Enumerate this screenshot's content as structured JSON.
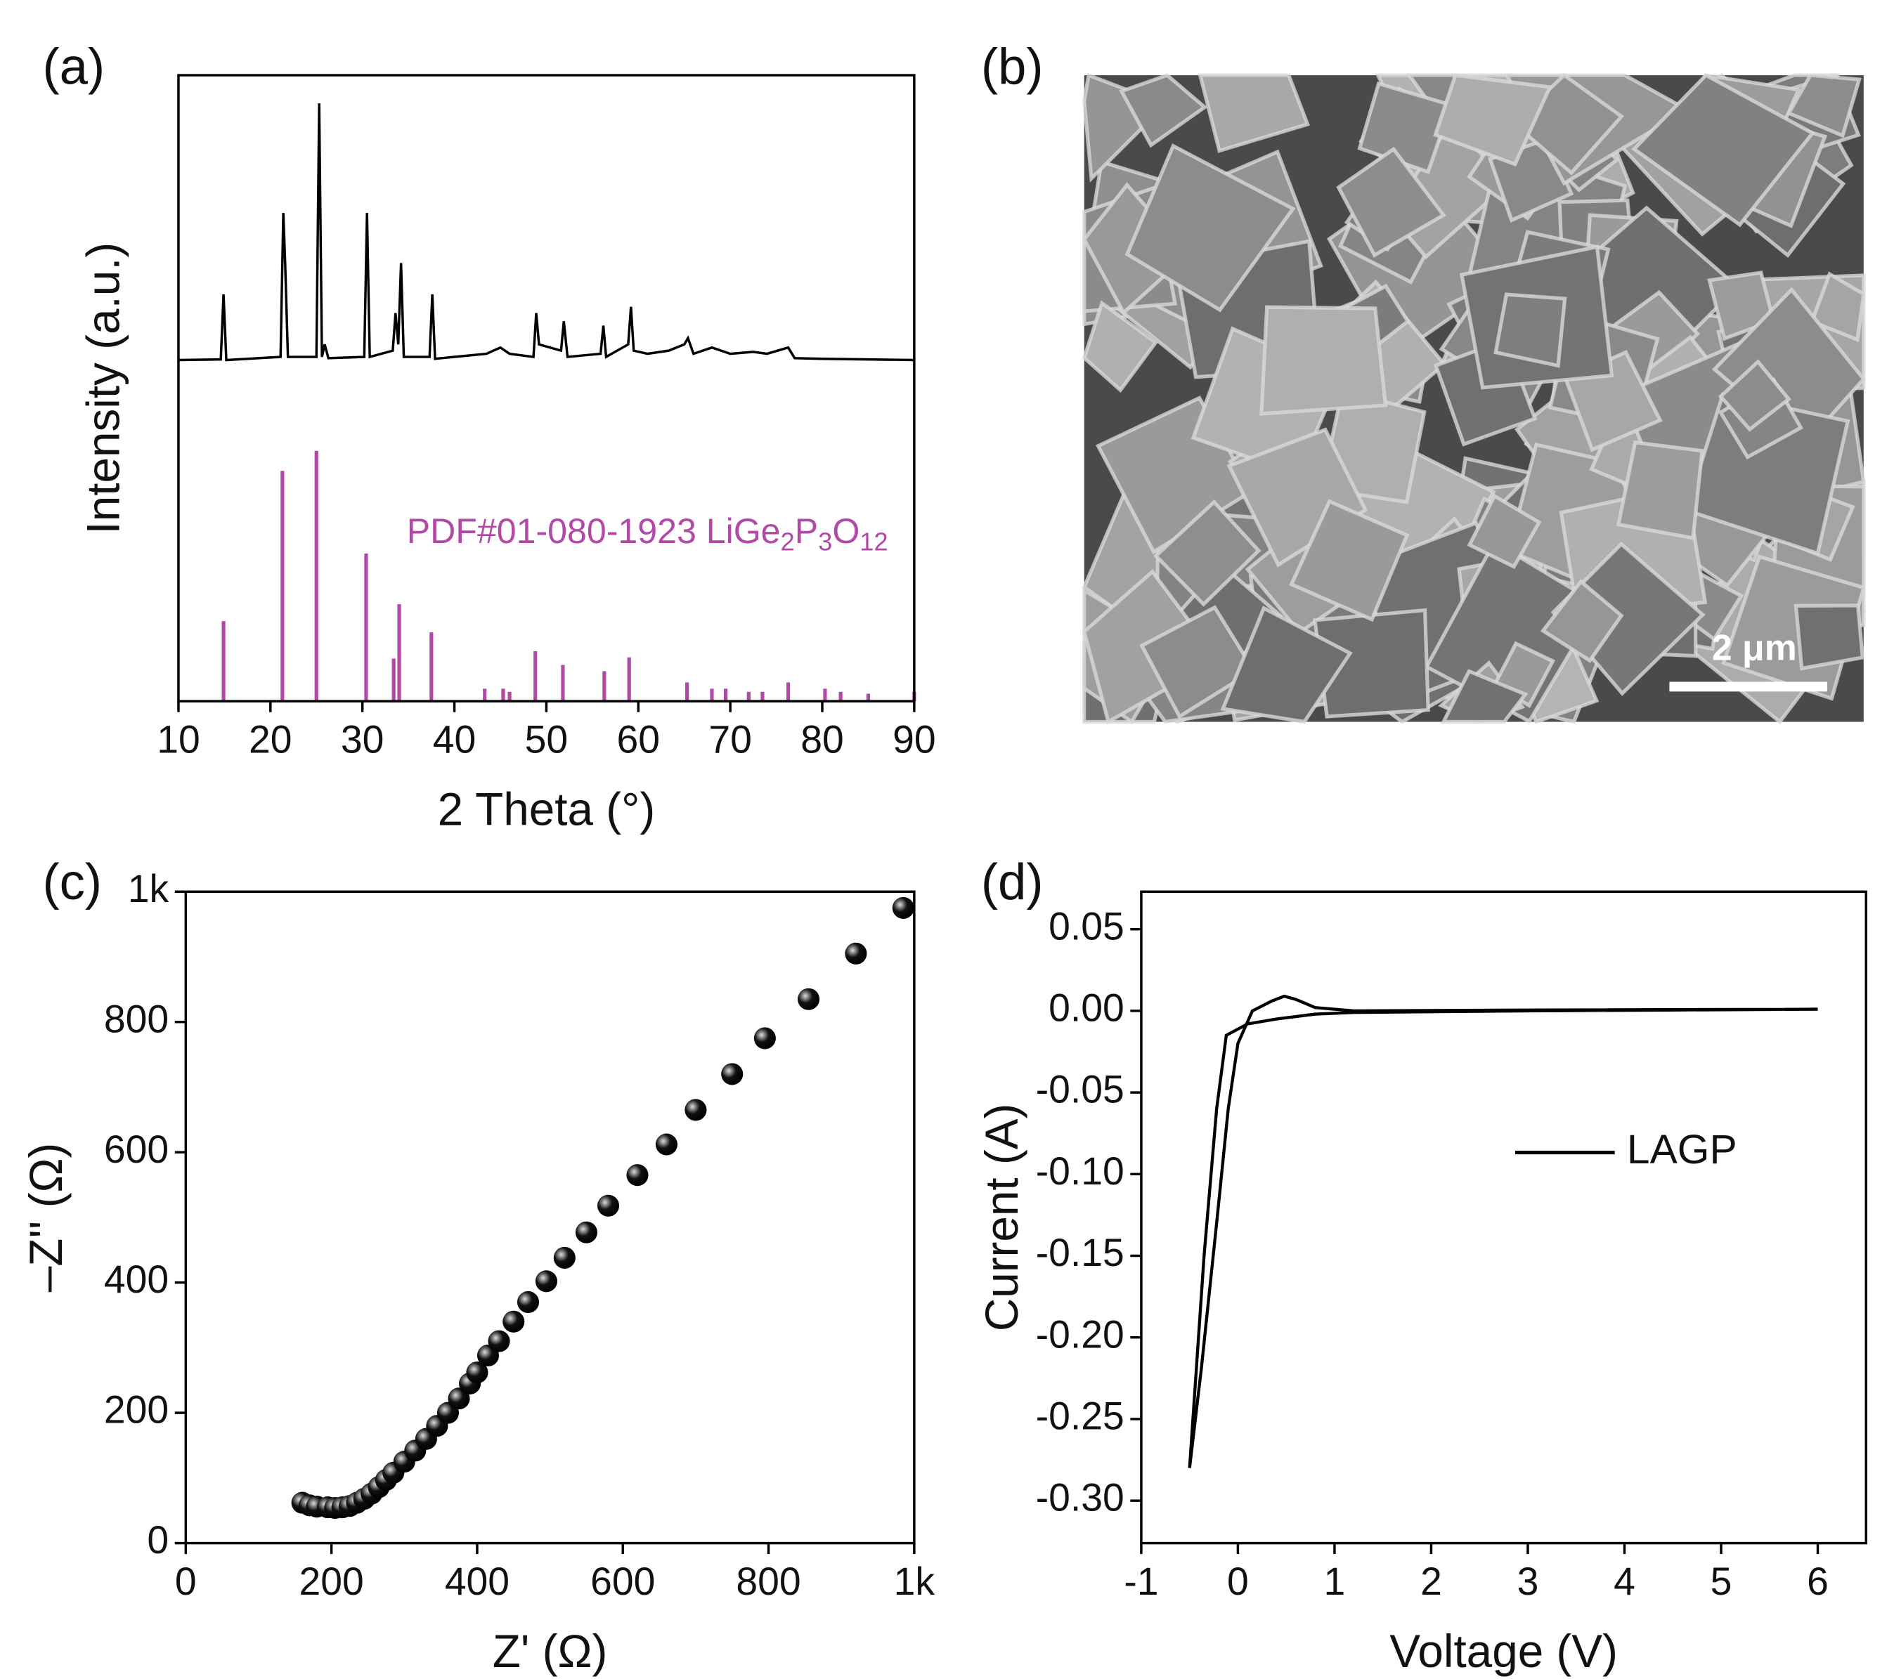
{
  "chart_data": [
    {
      "type": "line",
      "panel_label": "(a)",
      "xlabel": "2 Theta (°)",
      "ylabel": "Intensity (a.u.)",
      "xlim": [
        10,
        90
      ],
      "xticks": [
        10,
        20,
        30,
        40,
        50,
        60,
        70,
        80,
        90
      ],
      "ylim": [
        0,
        100
      ],
      "annotation": [
        "PDF#01-080-1923 LiGe",
        "2",
        "P",
        "3",
        "O",
        "12"
      ],
      "series": [
        {
          "color": "#000000",
          "x": [
            10,
            14.6,
            14.9,
            15.2,
            21.1,
            21.4,
            21.6,
            21.9,
            25.0,
            25.3,
            25.6,
            25.9,
            26.3,
            30.2,
            30.5,
            30.8,
            33.3,
            33.6,
            33.9,
            34.2,
            34.5,
            37.3,
            37.6,
            37.9,
            43.5,
            45,
            46,
            48.6,
            48.9,
            49.2,
            51.6,
            51.9,
            52.3,
            55.9,
            56.2,
            56.5,
            58.9,
            59.2,
            59.5,
            61,
            63.3,
            65,
            65.4,
            66,
            68,
            69,
            70,
            72.5,
            74,
            76.3,
            77,
            80,
            85,
            90
          ],
          "values": [
            54.5,
            54.6,
            65,
            54.5,
            55,
            78,
            70,
            55,
            55,
            95.5,
            55,
            57,
            54.8,
            55,
            78,
            55,
            56,
            62,
            57,
            70,
            55,
            55,
            65,
            54.7,
            55.5,
            56.5,
            55.5,
            55,
            62,
            57,
            56,
            60.7,
            55,
            55.5,
            60,
            55,
            57,
            63,
            56,
            55.5,
            56,
            57,
            58,
            55.5,
            56.5,
            56,
            55.5,
            55.8,
            55.5,
            56.5,
            54.8,
            54.7,
            54.6,
            54.5
          ]
        },
        {
          "type": "stem",
          "color": "#b04aa6",
          "x": [
            14.9,
            21.3,
            25.0,
            30.4,
            33.4,
            34.0,
            37.5,
            43.3,
            45.3,
            46.0,
            48.8,
            51.8,
            56.3,
            59.0,
            65.3,
            68.0,
            69.5,
            72.0,
            73.5,
            76.3,
            80.3,
            82.0,
            85.0,
            90.0
          ],
          "values": [
            12.8,
            36.8,
            40,
            23.6,
            6.8,
            15.5,
            11,
            2,
            2,
            1.5,
            8,
            5.8,
            4.8,
            7,
            3,
            2,
            2,
            1.5,
            1.5,
            3,
            2,
            1.5,
            1.2,
            1.5
          ]
        }
      ]
    },
    {
      "type": "scatter",
      "panel_label": "(c)",
      "xlabel": "Z' (Ω)",
      "ylabel": "–Z'' (Ω)",
      "xlim": [
        0,
        1000
      ],
      "xticks": [
        0,
        200,
        400,
        600,
        800,
        {
          "value": 1000,
          "label": "1k"
        }
      ],
      "ylim": [
        0,
        1000
      ],
      "yticks": [
        0,
        200,
        400,
        600,
        800,
        {
          "value": 1000,
          "label": "1k"
        }
      ],
      "series": [
        {
          "color": "#111111",
          "x": [
            160,
            170,
            180,
            195,
            205,
            215,
            225,
            235,
            245,
            255,
            265,
            275,
            285,
            300,
            315,
            330,
            345,
            360,
            375,
            390,
            400,
            415,
            430,
            450,
            470,
            495,
            520,
            550,
            580,
            620,
            660,
            700,
            750,
            795,
            855,
            920,
            985
          ],
          "values": [
            62,
            58,
            56,
            55,
            54,
            55,
            57,
            62,
            68,
            76,
            86,
            97,
            108,
            125,
            142,
            160,
            180,
            200,
            222,
            245,
            262,
            288,
            310,
            340,
            370,
            402,
            438,
            477,
            518,
            565,
            612,
            665,
            720,
            775,
            835,
            905,
            975
          ]
        }
      ]
    },
    {
      "type": "line",
      "panel_label": "(d)",
      "xlabel": "Voltage (V)",
      "ylabel": "Current (A)",
      "xlim": [
        -1,
        6.5
      ],
      "xticks": [
        -1,
        0,
        1,
        2,
        3,
        4,
        5,
        6
      ],
      "ylim": [
        -0.326,
        0.073
      ],
      "yticks": [
        0.05,
        {
          "value": 0,
          "label": "0.00"
        },
        -0.05,
        {
          "value": -0.1,
          "label": "-0.10"
        },
        -0.15,
        {
          "value": -0.2,
          "label": "-0.20"
        },
        -0.25,
        {
          "value": -0.3,
          "label": "-0.30"
        }
      ],
      "series": [
        {
          "name": "LAGP",
          "color": "#000000",
          "x": [
            -0.5,
            -0.35,
            -0.22,
            -0.12,
            0.1,
            0.4,
            0.8,
            1.2,
            3,
            6,
            3,
            1.2,
            0.8,
            0.6,
            0.48,
            0.35,
            0.15,
            0,
            -0.1,
            -0.22,
            -0.38,
            -0.5
          ],
          "values": [
            -0.28,
            -0.15,
            -0.06,
            -0.015,
            -0.008,
            -0.005,
            -0.002,
            -0.001,
            0,
            0.001,
            0.0005,
            0,
            0.002,
            0.007,
            0.009,
            0.006,
            0,
            -0.02,
            -0.06,
            -0.13,
            -0.22,
            -0.28
          ]
        }
      ]
    }
  ],
  "image": {
    "panel_label": "(b)",
    "scale_bar": "2 μm"
  }
}
